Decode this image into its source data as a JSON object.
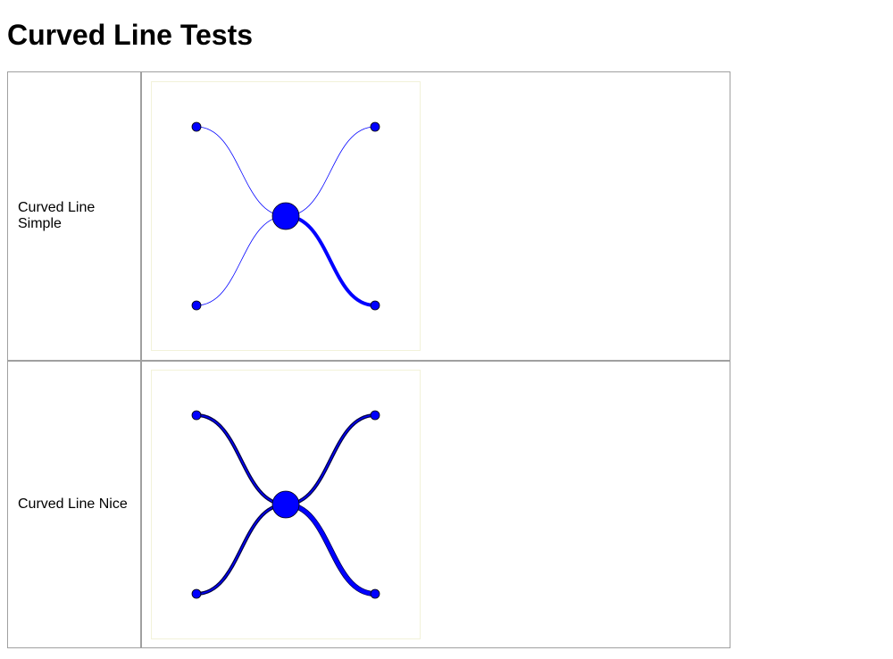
{
  "page": {
    "title": "Curved Line Tests"
  },
  "tests": [
    {
      "label": "Curved Line Simple",
      "style": "simple",
      "center": "blue",
      "thick_curve": "bottom-right"
    },
    {
      "label": "Curved Line Nice",
      "style": "nice",
      "center": "blue",
      "thick_curve": "bottom-right"
    }
  ],
  "colors": {
    "line": "#0000ff",
    "node_fill": "#0000ff",
    "node_stroke": "#000000",
    "shadow": "#000044",
    "table_border": "#a0a0a0",
    "frame_border": "#f2f2d9"
  }
}
